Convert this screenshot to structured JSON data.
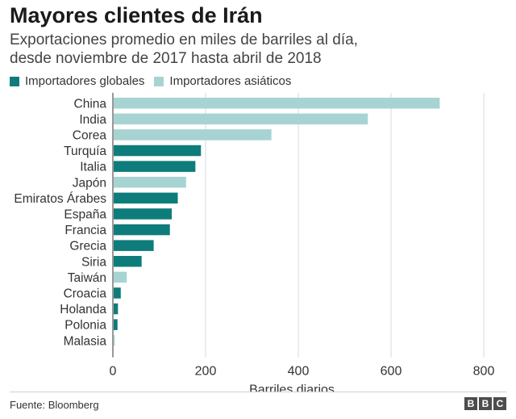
{
  "header": {
    "title": "Mayores clientes de Irán",
    "subtitle_line1": "Exportaciones promedio en miles de barriles al día,",
    "subtitle_line2": "desde noviembre de 2017 hasta abril de 2018"
  },
  "legend": {
    "global_label": "Importadores globales",
    "asian_label": "Importadores asiáticos"
  },
  "colors": {
    "global": "#0e7c7b",
    "asian": "#a7d4d2",
    "grid": "#d9d9d9",
    "axis": "#555555"
  },
  "chart_data": {
    "type": "bar",
    "orientation": "horizontal",
    "title": "Mayores clientes de Irán",
    "subtitle": "Exportaciones promedio en miles de barriles al día, desde noviembre de 2017 hasta abril de 2018",
    "xlabel": "Barriles diarios",
    "ylabel": "",
    "xlim": [
      0,
      800
    ],
    "xticks": [
      0,
      200,
      400,
      600,
      800
    ],
    "grid": true,
    "legend_position": "top-left",
    "categories": [
      "China",
      "India",
      "Corea",
      "Turquía",
      "Italia",
      "Japón",
      "Emiratos Árabes",
      "España",
      "Francia",
      "Grecia",
      "Siria",
      "Taiwán",
      "Croacia",
      "Holanda",
      "Polonia",
      "Malasia"
    ],
    "values": [
      705,
      550,
      342,
      190,
      178,
      158,
      140,
      127,
      123,
      88,
      62,
      30,
      17,
      11,
      10,
      4
    ],
    "groups": [
      "asian",
      "asian",
      "asian",
      "global",
      "global",
      "asian",
      "global",
      "global",
      "global",
      "global",
      "global",
      "asian",
      "global",
      "global",
      "global",
      "asian"
    ],
    "series": [
      {
        "name": "Importadores globales",
        "key": "global"
      },
      {
        "name": "Importadores asiáticos",
        "key": "asian"
      }
    ]
  },
  "footer": {
    "source": "Fuente: Bloomberg",
    "logo_letters": [
      "B",
      "B",
      "C"
    ]
  }
}
